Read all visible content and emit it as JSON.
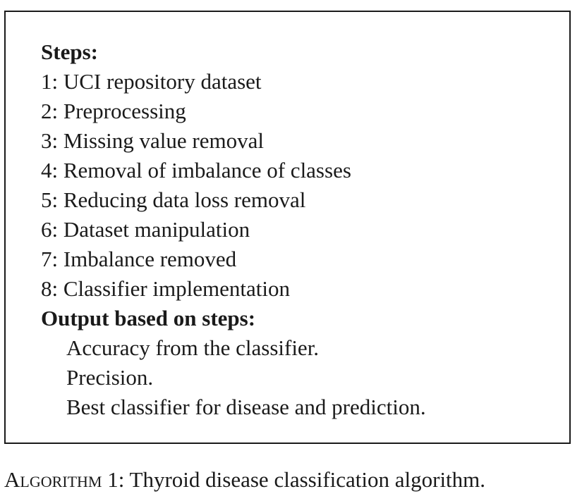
{
  "algorithm": {
    "steps_heading": "Steps:",
    "steps": [
      "1: UCI repository dataset",
      "2: Preprocessing",
      "3: Missing value removal",
      "4: Removal of imbalance of classes",
      "5: Reducing data loss removal",
      "6: Dataset manipulation",
      "7: Imbalance removed",
      "8: Classifier implementation"
    ],
    "output_heading": "Output based on steps:",
    "outputs": [
      "Accuracy from the classifier.",
      "Precision.",
      "Best classifier for disease and prediction."
    ]
  },
  "caption": {
    "label": "Algorithm 1",
    "text": ": Thyroid disease classification algorithm."
  }
}
